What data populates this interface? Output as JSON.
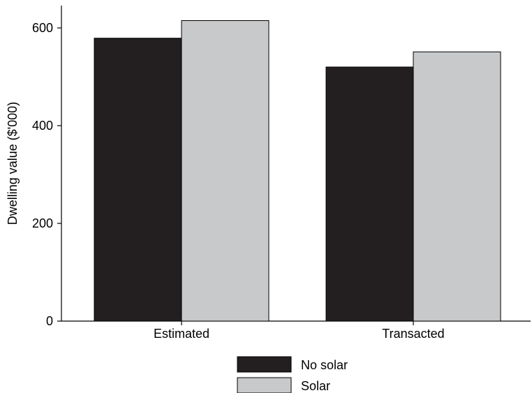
{
  "chart_data": {
    "type": "bar",
    "categories": [
      "Estimated",
      "Transacted"
    ],
    "series": [
      {
        "name": "No solar",
        "values": [
          579,
          520
        ],
        "color": "#231f20"
      },
      {
        "name": "Solar",
        "values": [
          615,
          551
        ],
        "color": "#c8c9cb"
      }
    ],
    "xlabel": "",
    "ylabel": "Dwelling value ($'000)",
    "ylim": [
      0,
      650
    ],
    "yticks": [
      0,
      200,
      400,
      600
    ],
    "grid": false,
    "legend_position": "bottom"
  }
}
